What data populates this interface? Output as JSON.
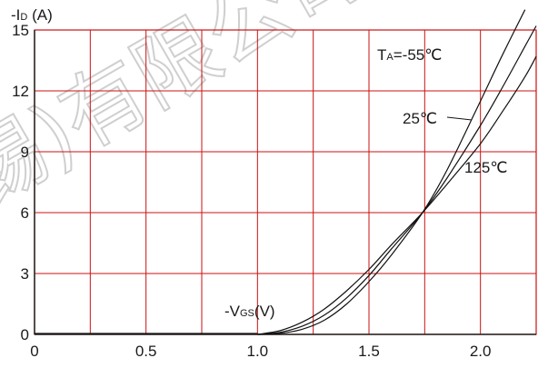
{
  "chart_data": {
    "type": "line",
    "ylabel": {
      "prefix": "-I",
      "sub": "D",
      "suffix": " (A)"
    },
    "xlabel_annotation": {
      "prefix": "-V",
      "sub": "GS",
      "suffix": "(V)"
    },
    "xlim": [
      0,
      2.25
    ],
    "ylim": [
      0,
      15
    ],
    "xticks": [
      0,
      0.5,
      1.0,
      1.5,
      2.0
    ],
    "xtick_labels": [
      "0",
      "0.5",
      "1.0",
      "1.5",
      "2.0"
    ],
    "yticks": [
      0,
      3,
      6,
      9,
      12,
      15
    ],
    "ytick_labels": [
      "0",
      "3",
      "6",
      "9",
      "12",
      "15"
    ],
    "grid": true,
    "grid_color": "#cc1111",
    "line_color": "#111111",
    "series": [
      {
        "name": "-55℃",
        "x": [
          1.0,
          1.1,
          1.2,
          1.3,
          1.4,
          1.5,
          1.6,
          1.74,
          1.85,
          2.0,
          2.1,
          2.2
        ],
        "y": [
          0,
          0.05,
          0.25,
          0.7,
          1.5,
          2.6,
          3.9,
          6.0,
          8.1,
          11.5,
          13.8,
          16.0
        ]
      },
      {
        "name": "25℃",
        "x": [
          1.0,
          1.1,
          1.2,
          1.3,
          1.4,
          1.5,
          1.6,
          1.74,
          1.85,
          2.0,
          2.1,
          2.2,
          2.25
        ],
        "y": [
          0,
          0.1,
          0.4,
          0.95,
          1.8,
          2.9,
          4.2,
          6.0,
          7.7,
          10.3,
          12.2,
          14.2,
          15.2
        ]
      },
      {
        "name": "125℃",
        "x": [
          1.0,
          1.1,
          1.2,
          1.3,
          1.4,
          1.5,
          1.6,
          1.74,
          1.85,
          2.0,
          2.1,
          2.2,
          2.25
        ],
        "y": [
          0,
          0.18,
          0.6,
          1.25,
          2.15,
          3.2,
          4.4,
          6.0,
          7.4,
          9.4,
          11.0,
          12.7,
          13.7
        ]
      }
    ],
    "annotations": {
      "ta_prefix": "T",
      "ta_sub": "A",
      "ta_value": "=-55℃",
      "t25": "25℃",
      "t125": "125℃"
    },
    "watermark": "锡)有限公司"
  }
}
